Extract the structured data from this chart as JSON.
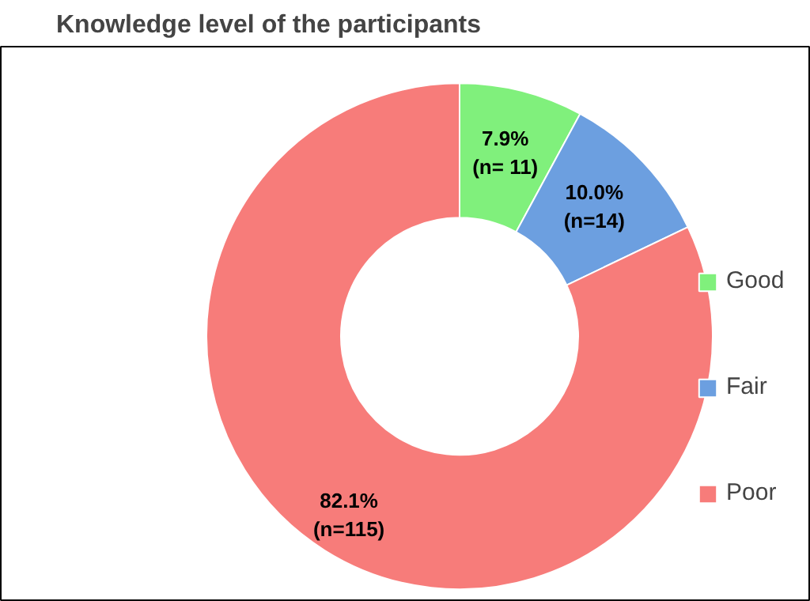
{
  "chart_data": {
    "type": "donut",
    "title": "Knowledge level of the participants",
    "categories": [
      "Good",
      "Fair",
      "Poor"
    ],
    "values": [
      7.9,
      10.0,
      82.1
    ],
    "colors": [
      "#80f07c",
      "#6c9fe0",
      "#f77c7a"
    ],
    "value_labels": [
      "7.9%\n(n= 11)",
      "10.0%\n(n=14)",
      "82.1%\n(n=115)"
    ],
    "legend": "right"
  }
}
